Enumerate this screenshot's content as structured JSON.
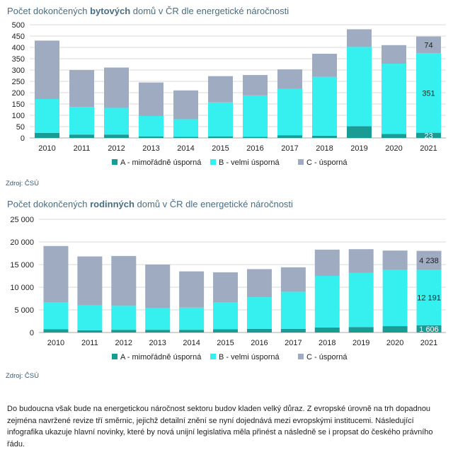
{
  "colors": {
    "A": "#199c93",
    "B": "#35f0ef",
    "C": "#9eabc0",
    "grid": "#d9d9d9",
    "axis": "#aaaaaa"
  },
  "chart_data": [
    {
      "type": "bar",
      "stacked": true,
      "title_parts": [
        "Počet dokončených ",
        "bytových",
        " domů v ČR dle energetické náročnosti"
      ],
      "source": "Zdroj: ČSÚ",
      "categories": [
        "2010",
        "2011",
        "2012",
        "2013",
        "2014",
        "2015",
        "2016",
        "2017",
        "2018",
        "2019",
        "2020",
        "2021"
      ],
      "ylim": [
        0,
        500
      ],
      "yticks": [
        0,
        50,
        100,
        150,
        200,
        250,
        300,
        350,
        400,
        450,
        500
      ],
      "ytick_labels": [
        "0",
        "50",
        "100",
        "150",
        "200",
        "250",
        "300",
        "350",
        "400",
        "450",
        "500"
      ],
      "series": [
        {
          "key": "A",
          "name": "A - mimořádně úsporná",
          "values": [
            22,
            15,
            15,
            7,
            5,
            7,
            5,
            12,
            10,
            52,
            18,
            23
          ]
        },
        {
          "key": "B",
          "name": "B - velmi úsporná",
          "values": [
            150,
            122,
            118,
            90,
            78,
            150,
            183,
            205,
            260,
            350,
            310,
            351
          ]
        },
        {
          "key": "C",
          "name": "C - úsporná",
          "values": [
            258,
            163,
            178,
            148,
            127,
            116,
            90,
            86,
            102,
            78,
            82,
            74
          ]
        }
      ],
      "data_labels": {
        "A": "23",
        "B": "351",
        "C": "74"
      }
    },
    {
      "type": "bar",
      "stacked": true,
      "title_parts": [
        "Počet dokončených ",
        "rodinných",
        " domů v ČR dle energetické náročnosti"
      ],
      "source": "Zdroj: ČSÚ",
      "categories": [
        "2010",
        "2011",
        "2012",
        "2013",
        "2014",
        "2015",
        "2016",
        "2017",
        "2018",
        "2019",
        "2020",
        "2021"
      ],
      "ylim": [
        0,
        25000
      ],
      "yticks": [
        0,
        5000,
        10000,
        15000,
        20000,
        25000
      ],
      "ytick_labels": [
        "0",
        "5 000",
        "10 000",
        "15 000",
        "20 000",
        "25 000"
      ],
      "series": [
        {
          "key": "A",
          "name": "A - mimořádně úsporná",
          "values": [
            700,
            500,
            600,
            600,
            600,
            700,
            800,
            800,
            1100,
            1200,
            1400,
            1606
          ]
        },
        {
          "key": "B",
          "name": "B - velmi úsporná",
          "values": [
            5900,
            5500,
            5300,
            4800,
            4900,
            5900,
            7000,
            8200,
            11400,
            12000,
            12400,
            12191
          ]
        },
        {
          "key": "C",
          "name": "C - úsporná",
          "values": [
            12500,
            10800,
            11000,
            9600,
            8000,
            6700,
            6200,
            5400,
            5800,
            5200,
            4300,
            4238
          ]
        }
      ],
      "data_labels": {
        "A": "1 606",
        "B": "12 191",
        "C": "4 238"
      }
    }
  ],
  "paragraph": "Do budoucna však bude na energetickou náročnost sektoru budov kladen velký důraz. Z evropské úrovně na trh dopadnou zejména navržené revize tří směrnic, jejichž detailní znění se nyní dojednává mezi evropskými institucemi. Následující infografika ukazuje hlavní novinky, které by nová unijní legislativa měla přinést a následně se i propsat do českého právního řádu."
}
